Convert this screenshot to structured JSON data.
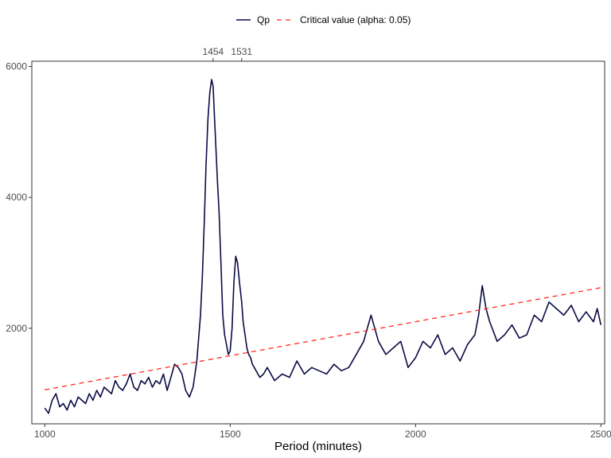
{
  "chart_data": {
    "type": "line",
    "title": "",
    "xlabel": "Period (minutes)",
    "ylabel": "",
    "xlim": [
      965,
      2510
    ],
    "ylim": [
      540,
      6080
    ],
    "x_ticks": [
      "1000",
      "1500",
      "2000",
      "2500"
    ],
    "y_ticks": [
      "2000",
      "4000",
      "6000"
    ],
    "x_tick_values": [
      1000,
      1500,
      2000,
      2500
    ],
    "y_tick_values": [
      2000,
      4000,
      6000
    ],
    "top_ticks": [
      {
        "label": "1454",
        "value": 1454
      },
      {
        "label": "1531",
        "value": 1531
      }
    ],
    "legend_position": "top",
    "grid": false,
    "legend": [
      {
        "name": "Qp",
        "color": "#0b0b45",
        "style": "solid"
      },
      {
        "name": "Critical value (alpha: 0.05)",
        "color": "#ff2a1a",
        "style": "dashed"
      }
    ],
    "series": [
      {
        "name": "Qp",
        "color": "#0b0b45",
        "x": [
          1000,
          1010,
          1020,
          1030,
          1040,
          1050,
          1060,
          1070,
          1080,
          1090,
          1100,
          1110,
          1120,
          1130,
          1140,
          1150,
          1160,
          1170,
          1180,
          1190,
          1200,
          1210,
          1220,
          1230,
          1240,
          1250,
          1260,
          1270,
          1280,
          1290,
          1300,
          1310,
          1320,
          1330,
          1340,
          1350,
          1360,
          1370,
          1380,
          1390,
          1400,
          1410,
          1420,
          1425,
          1430,
          1435,
          1440,
          1445,
          1450,
          1454,
          1458,
          1462,
          1466,
          1470,
          1475,
          1480,
          1485,
          1490,
          1495,
          1500,
          1505,
          1510,
          1515,
          1520,
          1525,
          1531,
          1535,
          1540,
          1545,
          1550,
          1555,
          1560,
          1570,
          1580,
          1590,
          1600,
          1620,
          1640,
          1660,
          1680,
          1700,
          1720,
          1740,
          1760,
          1780,
          1800,
          1820,
          1840,
          1860,
          1870,
          1880,
          1900,
          1920,
          1940,
          1960,
          1980,
          2000,
          2020,
          2040,
          2060,
          2080,
          2100,
          2120,
          2140,
          2160,
          2170,
          2180,
          2190,
          2200,
          2220,
          2240,
          2260,
          2280,
          2300,
          2320,
          2340,
          2360,
          2380,
          2400,
          2420,
          2440,
          2460,
          2480,
          2490,
          2500
        ],
        "values": [
          780,
          700,
          900,
          1000,
          800,
          850,
          750,
          900,
          800,
          950,
          900,
          850,
          1000,
          900,
          1050,
          950,
          1100,
          1050,
          1000,
          1200,
          1100,
          1050,
          1150,
          1300,
          1100,
          1050,
          1200,
          1150,
          1250,
          1100,
          1200,
          1150,
          1300,
          1050,
          1250,
          1450,
          1400,
          1300,
          1050,
          950,
          1100,
          1500,
          2200,
          2800,
          3600,
          4500,
          5200,
          5600,
          5800,
          5700,
          5200,
          4700,
          4200,
          3800,
          3000,
          2200,
          1900,
          1750,
          1600,
          1650,
          2000,
          2700,
          3100,
          3000,
          2700,
          2400,
          2100,
          1900,
          1700,
          1600,
          1550,
          1450,
          1350,
          1250,
          1300,
          1400,
          1200,
          1300,
          1250,
          1500,
          1300,
          1400,
          1350,
          1300,
          1450,
          1350,
          1400,
          1600,
          1800,
          2000,
          2200,
          1800,
          1600,
          1700,
          1800,
          1400,
          1550,
          1800,
          1700,
          1900,
          1600,
          1700,
          1500,
          1750,
          1900,
          2200,
          2650,
          2300,
          2100,
          1800,
          1900,
          2050,
          1850,
          1900,
          2200,
          2100,
          2400,
          2300,
          2200,
          2350,
          2100,
          2250,
          2100,
          2300,
          2050
        ]
      },
      {
        "name": "Critical value (alpha: 0.05)",
        "color": "#ff2a1a",
        "x": [
          1000,
          2500
        ],
        "values": [
          1060,
          2620
        ]
      }
    ]
  }
}
